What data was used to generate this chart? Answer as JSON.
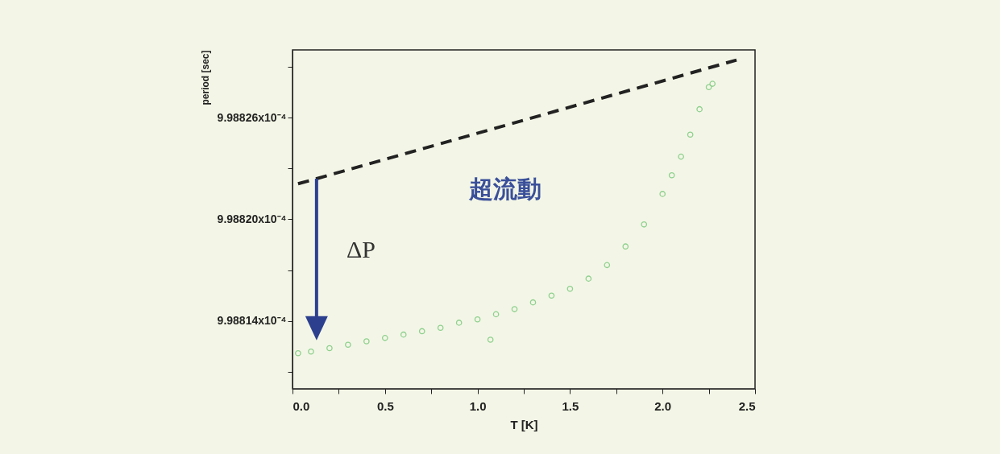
{
  "chart_data": {
    "type": "scatter",
    "xlabel": "T [K]",
    "ylabel": "period [sec]",
    "xlim": [
      0,
      2.5
    ],
    "xticks": [
      {
        "value": 0,
        "label": "0.0"
      },
      {
        "value": 0.25,
        "label": null
      },
      0.5,
      {
        "value": 0.75,
        "label": null
      },
      {
        "value": 1,
        "label": "1.0"
      },
      {
        "value": 1.25,
        "label": null
      },
      1.5,
      {
        "value": 1.75,
        "label": null
      },
      {
        "value": 2,
        "label": "2.0"
      },
      {
        "value": 2.25,
        "label": null
      },
      2.5
    ],
    "ylim": [
      0.00099881,
      0.00099883
    ],
    "yticks": [
      {
        "value": 0.000998811,
        "label": null
      },
      {
        "value": 0.000998814,
        "label": "9.98814x10⁻⁴"
      },
      {
        "value": 0.000998817,
        "label": null
      },
      {
        "value": 0.00099882,
        "label": "9.98820x10⁻⁴"
      },
      {
        "value": 0.000998823,
        "label": null
      },
      {
        "value": 0.000998826,
        "label": "9.98826x10⁻⁴"
      },
      {
        "value": 0.000998829,
        "label": null
      }
    ],
    "series": [
      {
        "color": "#8fd08f",
        "marker": "circle",
        "x": [
          0.03,
          0.1,
          0.2,
          0.3,
          0.4,
          0.5,
          0.6,
          0.7,
          0.8,
          0.9,
          1.0,
          1.07,
          1.1,
          1.2,
          1.3,
          1.4,
          1.5,
          1.6,
          1.7,
          1.8,
          1.9,
          2.0,
          2.05,
          2.1,
          2.15,
          2.2,
          2.25,
          2.27
        ],
        "values": [
          0.0009988121,
          0.0009988122,
          0.0009988124,
          0.0009988126,
          0.0009988128,
          0.000998813,
          0.0009988132,
          0.0009988134,
          0.0009988136,
          0.0009988139,
          0.0009988141,
          0.0009988129,
          0.0009988144,
          0.0009988147,
          0.0009988151,
          0.0009988155,
          0.0009988159,
          0.0009988165,
          0.0009988173,
          0.0009988184,
          0.0009988197,
          0.0009988215,
          0.0009988226,
          0.0009988237,
          0.000998825,
          0.0009988265,
          0.0009988278,
          0.000998828
        ]
      },
      {
        "type": "line",
        "color": "#222222",
        "line_style": "dashed",
        "x": [
          0.03,
          0.13,
          2.4
        ],
        "values": [
          0.0009988221,
          0.0009988224,
          0.0009988294
        ]
      }
    ],
    "annotations": [
      "超流動",
      "ΔP"
    ]
  }
}
